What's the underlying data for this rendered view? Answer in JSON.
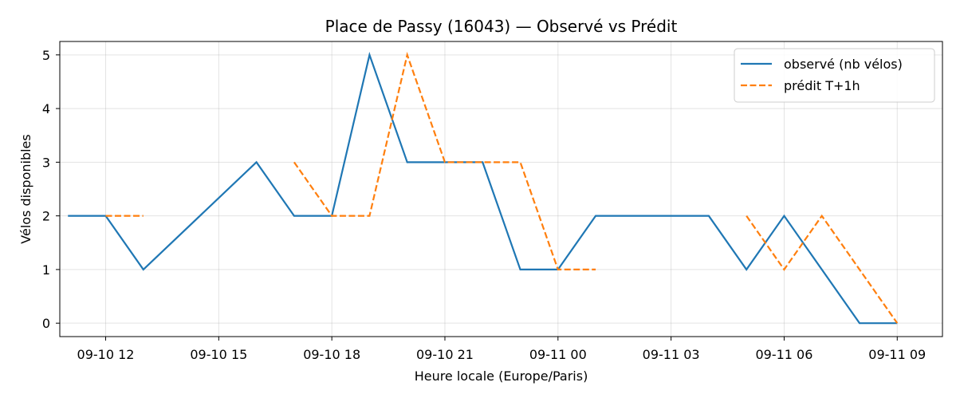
{
  "chart_data": {
    "type": "line",
    "title": "Place de Passy (16043) — Observé vs Prédit",
    "xlabel": "Heure locale (Europe/Paris)",
    "ylabel": "Vélos disponibles",
    "x_tick_labels": [
      "09-10 12",
      "09-10 15",
      "09-10 18",
      "09-10 21",
      "09-11 00",
      "09-11 03",
      "09-11 06",
      "09-11 09"
    ],
    "x_ticks": [
      "2024-09-10 12:00",
      "2024-09-10 15:00",
      "2024-09-10 18:00",
      "2024-09-10 21:00",
      "2024-09-11 00:00",
      "2024-09-11 03:00",
      "2024-09-11 06:00",
      "2024-09-11 09:00"
    ],
    "xlim": [
      "2024-09-10 10:47",
      "2024-09-11 10:12"
    ],
    "y_ticks": [
      0,
      1,
      2,
      3,
      4,
      5
    ],
    "ylim": [
      -0.25,
      5.25
    ],
    "grid": true,
    "legend_position": "top-right",
    "series": [
      {
        "name": "observé (nb vélos)",
        "color": "#1f77b4",
        "style": "solid",
        "points": [
          {
            "x": "2024-09-10 11:00",
            "y": 2
          },
          {
            "x": "2024-09-10 12:00",
            "y": 2
          },
          {
            "x": "2024-09-10 13:00",
            "y": 1
          },
          {
            "x": "2024-09-10 16:00",
            "y": 3
          },
          {
            "x": "2024-09-10 17:00",
            "y": 2
          },
          {
            "x": "2024-09-10 18:00",
            "y": 2
          },
          {
            "x": "2024-09-10 19:00",
            "y": 5
          },
          {
            "x": "2024-09-10 20:00",
            "y": 3
          },
          {
            "x": "2024-09-10 22:00",
            "y": 3
          },
          {
            "x": "2024-09-10 23:00",
            "y": 1
          },
          {
            "x": "2024-09-11 00:00",
            "y": 1
          },
          {
            "x": "2024-09-11 01:00",
            "y": 2
          },
          {
            "x": "2024-09-11 04:00",
            "y": 2
          },
          {
            "x": "2024-09-11 05:00",
            "y": 1
          },
          {
            "x": "2024-09-11 06:00",
            "y": 2
          },
          {
            "x": "2024-09-11 08:00",
            "y": 0
          },
          {
            "x": "2024-09-11 09:00",
            "y": 0
          }
        ]
      },
      {
        "name": "prédit T+1h",
        "color": "#ff7f0e",
        "style": "dashed",
        "segments": [
          [
            {
              "x": "2024-09-10 12:00",
              "y": 2
            },
            {
              "x": "2024-09-10 13:00",
              "y": 2
            }
          ],
          [
            {
              "x": "2024-09-10 17:00",
              "y": 3
            },
            {
              "x": "2024-09-10 18:00",
              "y": 2
            },
            {
              "x": "2024-09-10 19:00",
              "y": 2
            },
            {
              "x": "2024-09-10 20:00",
              "y": 5
            },
            {
              "x": "2024-09-10 21:00",
              "y": 3
            },
            {
              "x": "2024-09-10 23:00",
              "y": 3
            },
            {
              "x": "2024-09-11 00:00",
              "y": 1
            },
            {
              "x": "2024-09-11 01:00",
              "y": 1
            }
          ],
          [
            {
              "x": "2024-09-11 05:00",
              "y": 2
            },
            {
              "x": "2024-09-11 06:00",
              "y": 1
            },
            {
              "x": "2024-09-11 07:00",
              "y": 2
            },
            {
              "x": "2024-09-11 09:00",
              "y": 0
            }
          ]
        ]
      }
    ]
  }
}
